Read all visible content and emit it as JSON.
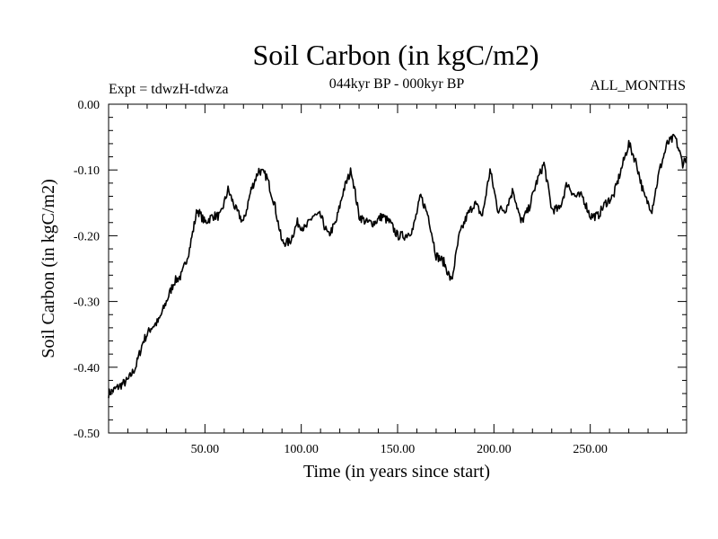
{
  "chart_data": {
    "type": "line",
    "title": "Soil Carbon (in kgC/m2)",
    "subtitle": "044kyr BP - 000kyr BP",
    "annotation_left": "Expt = tdwzH-tdwza",
    "annotation_right": "ALL_MONTHS",
    "xlabel": "Time (in years since start)",
    "ylabel": "Soil Carbon (in kgC/m2)",
    "xlim": [
      0,
      300
    ],
    "ylim": [
      -0.5,
      0.0
    ],
    "xticks": [
      50,
      100,
      150,
      200,
      250
    ],
    "xtick_labels": [
      "50.00",
      "100.00",
      "150.00",
      "200.00",
      "250.00"
    ],
    "yticks": [
      0.0,
      -0.1,
      -0.2,
      -0.3,
      -0.4,
      -0.5
    ],
    "ytick_labels": [
      "0.00",
      "-0.10",
      "-0.20",
      "-0.30",
      "-0.40",
      "-0.50"
    ],
    "grid": false,
    "series": [
      {
        "name": "Soil Carbon",
        "color": "#000000",
        "x": [
          0,
          5,
          10,
          14,
          18,
          22,
          26,
          30,
          34,
          38,
          42,
          46,
          50,
          54,
          58,
          62,
          66,
          70,
          74,
          78,
          82,
          86,
          90,
          94,
          98,
          102,
          106,
          110,
          114,
          118,
          122,
          126,
          130,
          134,
          138,
          142,
          146,
          150,
          154,
          158,
          162,
          166,
          170,
          174,
          178,
          182,
          186,
          190,
          194,
          198,
          202,
          206,
          210,
          214,
          218,
          222,
          226,
          230,
          234,
          238,
          242,
          246,
          250,
          254,
          258,
          262,
          266,
          270,
          274,
          278,
          282,
          286,
          290,
          294,
          298,
          300
        ],
        "values": [
          -0.44,
          -0.43,
          -0.42,
          -0.4,
          -0.36,
          -0.34,
          -0.33,
          -0.3,
          -0.27,
          -0.26,
          -0.22,
          -0.16,
          -0.18,
          -0.17,
          -0.17,
          -0.13,
          -0.16,
          -0.18,
          -0.13,
          -0.1,
          -0.11,
          -0.15,
          -0.21,
          -0.21,
          -0.18,
          -0.19,
          -0.17,
          -0.17,
          -0.2,
          -0.18,
          -0.13,
          -0.1,
          -0.17,
          -0.18,
          -0.18,
          -0.17,
          -0.18,
          -0.2,
          -0.2,
          -0.19,
          -0.14,
          -0.17,
          -0.23,
          -0.24,
          -0.27,
          -0.2,
          -0.17,
          -0.15,
          -0.17,
          -0.1,
          -0.16,
          -0.16,
          -0.13,
          -0.18,
          -0.16,
          -0.12,
          -0.09,
          -0.16,
          -0.16,
          -0.12,
          -0.14,
          -0.14,
          -0.17,
          -0.17,
          -0.15,
          -0.14,
          -0.1,
          -0.06,
          -0.09,
          -0.14,
          -0.16,
          -0.1,
          -0.06,
          -0.05,
          -0.09,
          -0.08
        ]
      }
    ]
  }
}
